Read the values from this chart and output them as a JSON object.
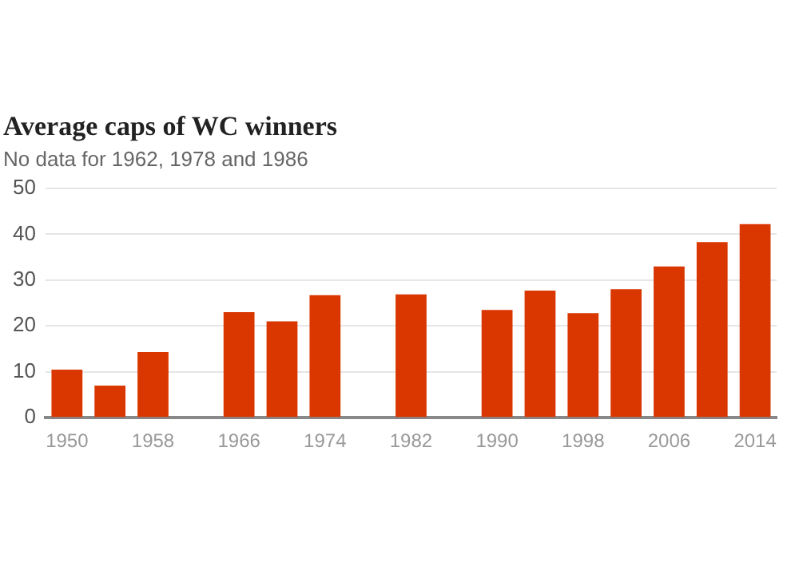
{
  "chart_data": {
    "type": "bar",
    "title": "Average caps of WC winners",
    "subtitle": "No data for 1962, 1978 and 1986",
    "categories": [
      "1950",
      null,
      "1958",
      null,
      "1966",
      null,
      "1974",
      null,
      "1982",
      null,
      "1990",
      null,
      "1998",
      null,
      "2006",
      null,
      "2014"
    ],
    "values": [
      10.5,
      7,
      14.3,
      null,
      23,
      21,
      26.7,
      null,
      26.9,
      null,
      23.5,
      27.7,
      22.8,
      28,
      33,
      38.3,
      42.2
    ],
    "color": "#d93600",
    "ylim": [
      0,
      50
    ],
    "yticks": [
      0,
      10,
      20,
      30,
      40,
      50
    ],
    "grid": "y",
    "legend": false
  }
}
